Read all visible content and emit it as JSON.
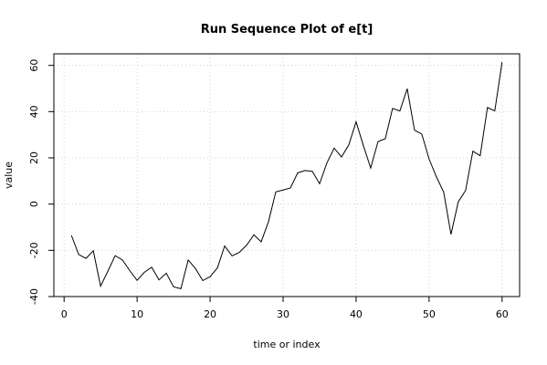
{
  "chart_data": {
    "type": "line",
    "title": "Run Sequence Plot of e[t]",
    "xlabel": "time or index",
    "ylabel": "value",
    "xlim": [
      -1.4,
      62.4
    ],
    "ylim": [
      -40,
      65
    ],
    "x_ticks": [
      0,
      10,
      20,
      30,
      40,
      50,
      60
    ],
    "y_ticks": [
      -40,
      -20,
      0,
      20,
      40,
      60
    ],
    "grid": true,
    "series": [
      {
        "x": [
          1,
          2,
          3,
          4,
          5,
          6,
          7,
          8,
          9,
          10,
          11,
          12,
          13,
          14,
          15,
          16,
          17,
          18,
          19,
          20,
          21,
          22,
          23,
          24,
          25,
          26,
          27,
          28,
          29,
          30,
          31,
          32,
          33,
          34,
          35,
          36,
          37,
          38,
          39,
          40,
          41,
          42,
          43,
          44,
          45,
          46,
          47,
          48,
          49,
          50,
          51,
          52,
          53,
          54,
          55,
          56,
          57,
          58,
          59,
          60
        ],
        "values": [
          -13.5,
          -21.8,
          -23.5,
          -20.2,
          -35.5,
          -29,
          -22.3,
          -24.2,
          -28.8,
          -33,
          -29.5,
          -27.3,
          -32.8,
          -29.9,
          -35.8,
          -36.6,
          -24.2,
          -27.9,
          -33.1,
          -31.4,
          -27.6,
          -18.1,
          -22.4,
          -20.9,
          -17.8,
          -13.3,
          -16.3,
          -7.6,
          5.3,
          6.1,
          7,
          13.5,
          14.5,
          14.2,
          8.8,
          17.8,
          24.2,
          20.4,
          25.6,
          35.6,
          25.3,
          15.6,
          27,
          28.3,
          41.4,
          40.3,
          49.9,
          32,
          30.3,
          19.5,
          11.8,
          5.2,
          -13.1,
          1,
          5.9,
          22.9,
          20.9,
          41.8,
          40.3,
          61.4
        ]
      }
    ]
  }
}
